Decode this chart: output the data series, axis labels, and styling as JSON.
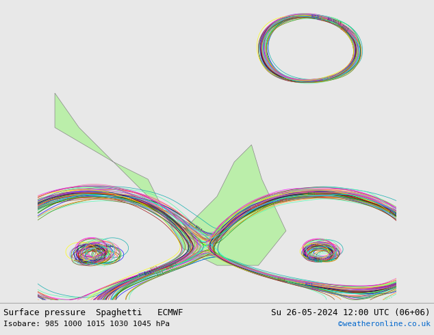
{
  "title_left": "Surface pressure  Spaghetti   ECMWF",
  "title_right": "Su 26-05-2024 12:00 UTC (06+06)",
  "subtitle_left": "Isobare: 985 1000 1015 1030 1045 hPa",
  "subtitle_right": "©weatheronline.co.uk",
  "subtitle_right_color": "#0066cc",
  "bg_color": "#e8e8e8",
  "map_land_color": "#bbeeaa",
  "map_ocean_color": "#f5f5f5",
  "map_border_color": "#888888",
  "footer_bg": "#e8e8e8",
  "footer_text_color": "#000000",
  "figsize": [
    6.34,
    4.9
  ],
  "dpi": 100,
  "font_size_title": 9,
  "font_size_subtitle": 8,
  "extent": [
    -22,
    82,
    -45,
    42
  ],
  "isobar_levels": [
    985,
    1000,
    1015,
    1030,
    1045
  ],
  "n_members": 51,
  "ensemble_colors": [
    "#ff0000",
    "#00bb00",
    "#0000ff",
    "#ff8800",
    "#aa00aa",
    "#00aaaa",
    "#aaaa00",
    "#ff00ff",
    "#005500",
    "#990000",
    "#000099",
    "#ff6666",
    "#66ff66",
    "#6666ff",
    "#ffaa44",
    "#aa44ff",
    "#44ffaa",
    "#ffff00",
    "#00ffff",
    "#ff44aa",
    "#884400",
    "#004488",
    "#448800",
    "#880044",
    "#008844",
    "#448844",
    "#884488",
    "#ff8844",
    "#44ff88",
    "#8844ff"
  ]
}
